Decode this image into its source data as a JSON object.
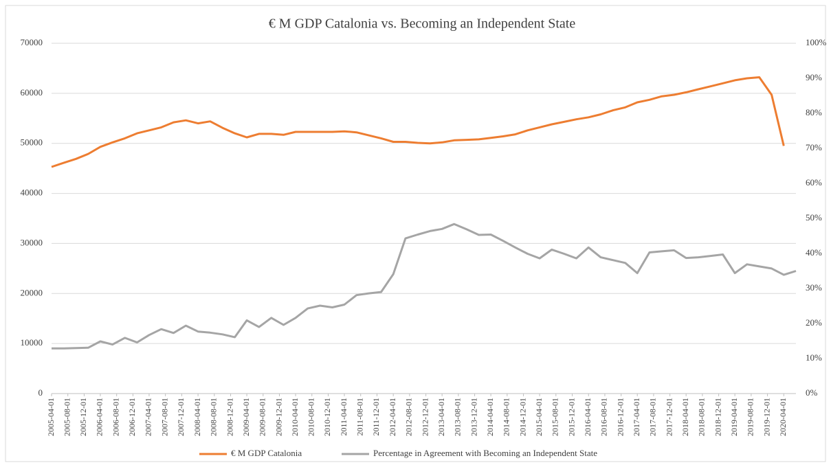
{
  "chart_data": {
    "type": "line",
    "title": "€ M GDP Catalonia vs. Becoming an Independent State",
    "x": [
      "2005-04-01",
      "2005-07-01",
      "2005-10-01",
      "2006-01-01",
      "2006-04-01",
      "2006-07-01",
      "2006-10-01",
      "2007-01-01",
      "2007-04-01",
      "2007-07-01",
      "2007-10-01",
      "2008-01-01",
      "2008-04-01",
      "2008-07-01",
      "2008-10-01",
      "2009-01-01",
      "2009-04-01",
      "2009-07-01",
      "2009-10-01",
      "2010-01-01",
      "2010-04-01",
      "2010-07-01",
      "2010-10-01",
      "2011-01-01",
      "2011-04-01",
      "2011-07-01",
      "2011-10-01",
      "2012-01-01",
      "2012-04-01",
      "2012-07-01",
      "2012-10-01",
      "2013-01-01",
      "2013-04-01",
      "2013-07-01",
      "2013-10-01",
      "2014-01-01",
      "2014-04-01",
      "2014-07-01",
      "2014-10-01",
      "2015-01-01",
      "2015-04-01",
      "2015-07-01",
      "2015-10-01",
      "2016-01-01",
      "2016-04-01",
      "2016-07-01",
      "2016-10-01",
      "2017-01-01",
      "2017-04-01",
      "2017-07-01",
      "2017-10-01",
      "2018-01-01",
      "2018-04-01",
      "2018-07-01",
      "2018-10-01",
      "2019-01-01",
      "2019-04-01",
      "2019-07-01",
      "2019-10-01",
      "2020-01-01",
      "2020-04-01",
      "2020-07-01"
    ],
    "series": [
      {
        "name": "€ M GDP Catalonia",
        "color": "#ED7D31",
        "axis": "y",
        "values": [
          45300,
          46100,
          46900,
          47900,
          49300,
          50200,
          51000,
          52000,
          52600,
          53200,
          54200,
          54600,
          54000,
          54400,
          53100,
          52000,
          51200,
          51900,
          51900,
          51700,
          52300,
          52300,
          52300,
          52300,
          52400,
          52200,
          51600,
          51000,
          50300,
          50300,
          50100,
          50000,
          50200,
          50600,
          50700,
          50800,
          51100,
          51400,
          51800,
          52600,
          53200,
          53800,
          54300,
          54800,
          55200,
          55800,
          56600,
          57200,
          58200,
          58700,
          59400,
          59700,
          60200,
          60800,
          61400,
          62000,
          62600,
          63000,
          63200,
          59700,
          49500,
          null
        ]
      },
      {
        "name": "Percentage in Agreement with Becoming an Independent State",
        "color": "#A5A5A5",
        "axis": "y2",
        "values": [
          12.9,
          12.9,
          13.0,
          13.1,
          14.9,
          14.0,
          15.9,
          14.6,
          16.7,
          18.4,
          17.3,
          19.4,
          17.7,
          17.4,
          16.9,
          16.1,
          20.9,
          19.0,
          21.6,
          19.6,
          21.6,
          24.3,
          25.1,
          24.6,
          25.4,
          28.1,
          28.6,
          29.0,
          34.1,
          44.3,
          45.4,
          46.4,
          47.0,
          48.4,
          46.9,
          45.3,
          45.4,
          43.6,
          41.7,
          39.9,
          38.6,
          41.1,
          39.9,
          38.6,
          41.7,
          38.9,
          38.1,
          37.3,
          34.4,
          40.3,
          40.6,
          40.9,
          38.7,
          38.9,
          39.3,
          39.7,
          34.4,
          36.9,
          36.3,
          35.7,
          33.9,
          35.0
        ]
      }
    ],
    "xlim": [
      "2005-04-01",
      "2020-07-01"
    ],
    "xticks": [
      "2005-04-01",
      "2005-08-01",
      "2005-12-01",
      "2006-04-01",
      "2006-08-01",
      "2006-12-01",
      "2007-04-01",
      "2007-08-01",
      "2007-12-01",
      "2008-04-01",
      "2008-08-01",
      "2008-12-01",
      "2009-04-01",
      "2009-08-01",
      "2009-12-01",
      "2010-04-01",
      "2010-08-01",
      "2010-12-01",
      "2011-04-01",
      "2011-08-01",
      "2011-12-01",
      "2012-04-01",
      "2012-08-01",
      "2012-12-01",
      "2013-04-01",
      "2013-08-01",
      "2013-12-01",
      "2014-04-01",
      "2014-08-01",
      "2014-12-01",
      "2015-04-01",
      "2015-08-01",
      "2015-12-01",
      "2016-04-01",
      "2016-08-01",
      "2016-12-01",
      "2017-04-01",
      "2017-08-01",
      "2017-12-01",
      "2018-04-01",
      "2018-08-01",
      "2018-12-01",
      "2019-04-01",
      "2019-08-01",
      "2019-12-01",
      "2020-04-01"
    ],
    "ylim": [
      0,
      70000
    ],
    "yticks": [
      0,
      10000,
      20000,
      30000,
      40000,
      50000,
      60000,
      70000
    ],
    "y2lim": [
      0,
      100
    ],
    "y2ticks": [
      {
        "value": 0,
        "label": "0%"
      },
      {
        "value": 10,
        "label": "10%"
      },
      {
        "value": 20,
        "label": "20%"
      },
      {
        "value": 30,
        "label": "30%"
      },
      {
        "value": 40,
        "label": "40%"
      },
      {
        "value": 50,
        "label": "50%"
      },
      {
        "value": 60,
        "label": "60%"
      },
      {
        "value": 70,
        "label": "70%"
      },
      {
        "value": 80,
        "label": "80%"
      },
      {
        "value": 90,
        "label": "90%"
      },
      {
        "value": 100,
        "label": "100%"
      }
    ],
    "grid": true,
    "legend": "bottom"
  }
}
